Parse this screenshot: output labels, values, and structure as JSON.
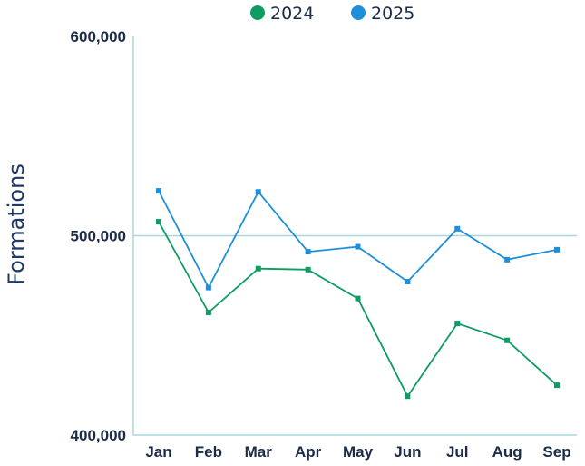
{
  "chart_data": {
    "type": "line",
    "title": "",
    "xlabel": "",
    "ylabel": "Formations",
    "categories": [
      "Jan",
      "Feb",
      "Mar",
      "Apr",
      "May",
      "Jun",
      "Jul",
      "Aug",
      "Sep"
    ],
    "ylim": [
      400000,
      600000
    ],
    "yticks": [
      400000,
      500000,
      600000
    ],
    "ytick_labels": [
      "400,000",
      "500,000",
      "600,000"
    ],
    "grid": "horizontal line at 500,000",
    "legend_position": "top-center",
    "series": [
      {
        "name": "2024",
        "color": "#0e9c62",
        "values": [
          507000,
          461500,
          483500,
          483000,
          468500,
          419500,
          456000,
          447500,
          425000
        ]
      },
      {
        "name": "2025",
        "color": "#1d8fdb",
        "values": [
          522500,
          474000,
          522000,
          492000,
          494500,
          477000,
          503500,
          488000,
          493000
        ]
      }
    ],
    "axis_color": "#a8d8de"
  }
}
